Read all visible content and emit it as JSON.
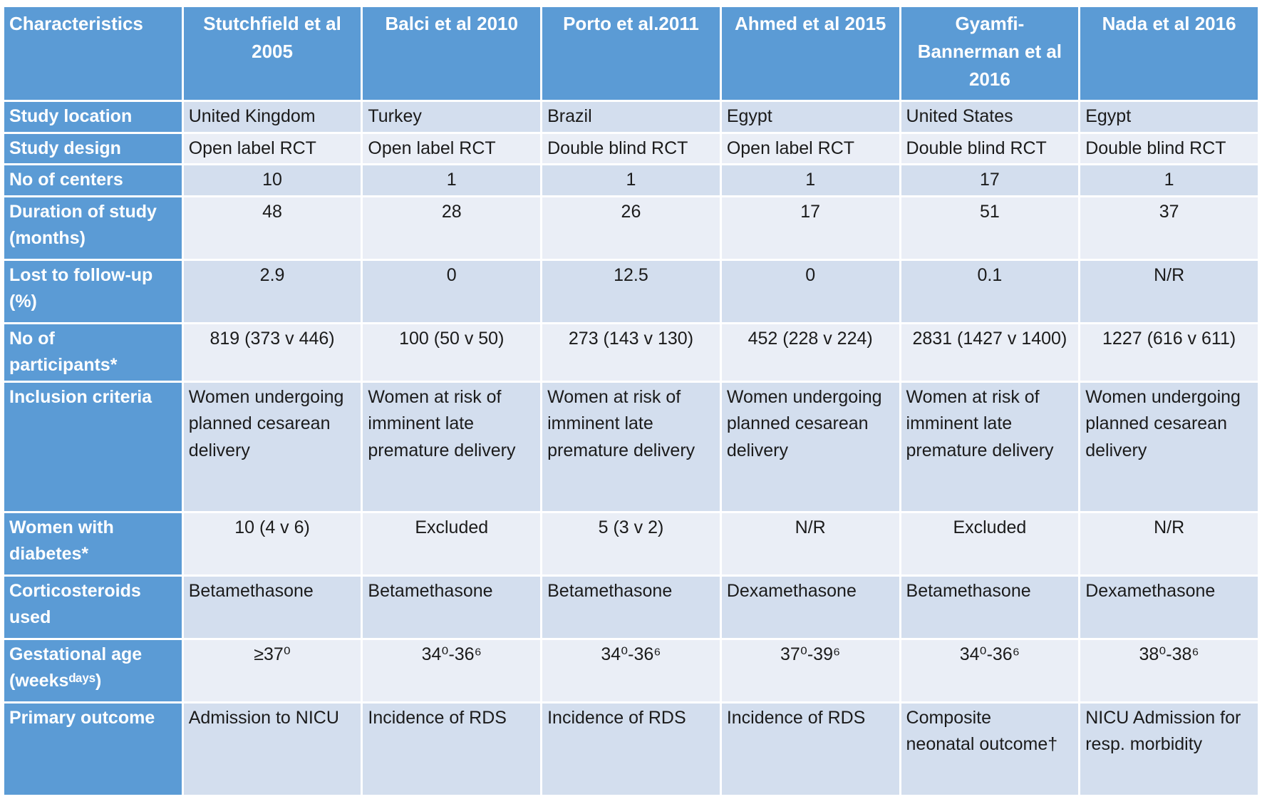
{
  "table": {
    "header": {
      "label": "Characteristics",
      "studies": [
        "Stutchfield et al 2005",
        "Balci et al 2010",
        "Porto et al.2011",
        "Ahmed et al 2015",
        "Gyamfi-Bannerman et al 2016",
        "Nada et al 2016"
      ]
    },
    "rows": [
      {
        "label": "Study location",
        "align": "left",
        "values": [
          "United Kingdom",
          "Turkey",
          "Brazil",
          "Egypt",
          "United States",
          "Egypt"
        ]
      },
      {
        "label": "Study design",
        "align": "left",
        "values": [
          "Open label RCT",
          "Open label RCT",
          "Double blind RCT",
          "Open label RCT",
          "Double blind RCT",
          "Double blind RCT"
        ]
      },
      {
        "label": "No of centers",
        "align": "center",
        "values": [
          "10",
          "1",
          "1",
          "1",
          "17",
          "1"
        ]
      },
      {
        "label": "Duration of study (months)",
        "align": "center",
        "values": [
          "48",
          "28",
          "26",
          "17",
          "51",
          "37"
        ]
      },
      {
        "label": "Lost to follow-up (%)",
        "align": "center",
        "values": [
          "2.9",
          "0",
          "12.5",
          "0",
          "0.1",
          "N/R"
        ]
      },
      {
        "label": "No of participants*",
        "align": "center",
        "values": [
          "819 (373 v 446)",
          "100 (50 v 50)",
          "273 (143 v 130)",
          "452 (228 v 224)",
          "2831 (1427 v 1400)",
          "1227 (616 v 611)"
        ]
      },
      {
        "label": "Inclusion criteria",
        "align": "left",
        "values": [
          "Women undergoing planned cesarean delivery",
          "Women at risk of imminent late premature delivery",
          "Women at risk of imminent late premature delivery",
          "Women undergoing planned cesarean delivery",
          "Women at risk of imminent late premature delivery",
          "Women undergoing planned cesarean delivery"
        ]
      },
      {
        "label": "Women with diabetes*",
        "align": "center",
        "values": [
          "10 (4 v 6)",
          "Excluded",
          "5 (3 v 2)",
          "N/R",
          "Excluded",
          "N/R"
        ]
      },
      {
        "label": "Corticosteroids used",
        "align": "left",
        "values": [
          "Betamethasone",
          "Betamethasone",
          "Betamethasone",
          "Dexamethasone",
          "Betamethasone",
          "Dexamethasone"
        ]
      },
      {
        "label": "Gestational age (weeksᵈᵃʸˢ)",
        "align": "center",
        "values": [
          "≥37⁰",
          "34⁰-36⁶",
          "34⁰-36⁶",
          "37⁰-39⁶",
          "34⁰-36⁶",
          "38⁰-38⁶"
        ]
      },
      {
        "label": "Primary outcome",
        "align": "left",
        "values": [
          "Admission to NICU",
          "Incidence of RDS",
          "Incidence of RDS",
          "Incidence of RDS",
          "Composite neonatal outcome†",
          "NICU Admission for resp. morbidity"
        ]
      }
    ],
    "colors": {
      "header_bg": "#5B9BD5",
      "header_text": "#FFFFFF",
      "band_dark": "#D3DEEE",
      "band_light": "#EAEEF6",
      "body_text": "#1B1B1B",
      "grid": "#FFFFFF"
    }
  }
}
